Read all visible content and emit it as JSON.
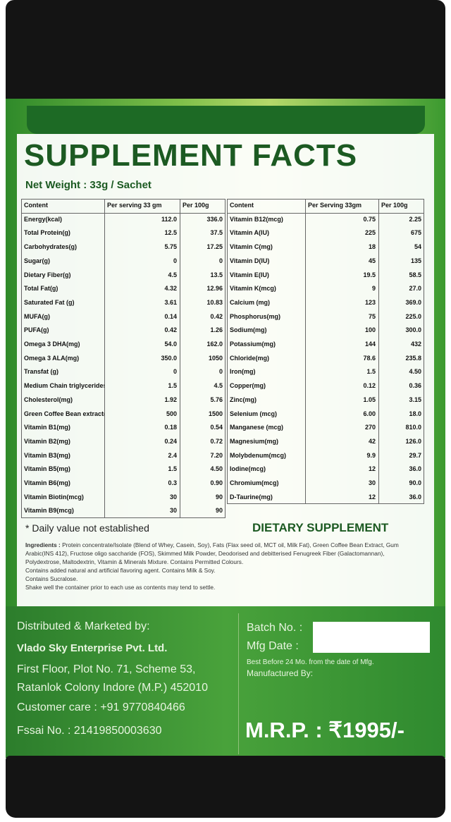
{
  "header": {
    "title": "SUPPLEMENT FACTS",
    "net_weight": "Net Weight : 33g / Sachet"
  },
  "left_table": {
    "columns": [
      "Content",
      "Per serving 33 gm",
      "Per 100g"
    ],
    "rows": [
      [
        "Energy(kcal)",
        "112.0",
        "336.0"
      ],
      [
        "Total Protein(g)",
        "12.5",
        "37.5"
      ],
      [
        "Carbohydrates(g)",
        "5.75",
        "17.25"
      ],
      [
        "Sugar(g)",
        "0",
        "0"
      ],
      [
        "Dietary Fiber(g)",
        "4.5",
        "13.5"
      ],
      [
        "Total Fat(g)",
        "4.32",
        "12.96"
      ],
      [
        "Saturated Fat (g)",
        "3.61",
        "10.83"
      ],
      [
        "MUFA(g)",
        "0.14",
        "0.42"
      ],
      [
        "PUFA(g)",
        "0.42",
        "1.26"
      ],
      [
        "Omega 3 DHA(mg)",
        "54.0",
        "162.0"
      ],
      [
        "Omega 3 ALA(mg)",
        "350.0",
        "1050"
      ],
      [
        "Transfat (g)",
        "0",
        "0"
      ],
      [
        "Medium Chain triglycerides(g)",
        "1.5",
        "4.5"
      ],
      [
        "Cholesterol(mg)",
        "1.92",
        "5.76"
      ],
      [
        "Green Coffee Bean extract(mg)",
        "500",
        "1500"
      ],
      [
        "Vitamin B1(mg)",
        "0.18",
        "0.54"
      ],
      [
        "Vitamin B2(mg)",
        "0.24",
        "0.72"
      ],
      [
        "Vitamin B3(mg)",
        "2.4",
        "7.20"
      ],
      [
        "Vitamin B5(mg)",
        "1.5",
        "4.50"
      ],
      [
        "Vitamin B6(mg)",
        "0.3",
        "0.90"
      ],
      [
        "Vitamin Biotin(mcg)",
        "30",
        "90"
      ],
      [
        "Vitamin B9(mcg)",
        "30",
        "90"
      ]
    ]
  },
  "right_table": {
    "columns": [
      "Content",
      "Per Serving 33gm",
      "Per 100g"
    ],
    "rows": [
      [
        "Vitamin B12(mcg)",
        "0.75",
        "2.25"
      ],
      [
        "Vitamin A(IU)",
        "225",
        "675"
      ],
      [
        "Vitamin C(mg)",
        "18",
        "54"
      ],
      [
        "Vitamin D(IU)",
        "45",
        "135"
      ],
      [
        "Vitamin E(IU)",
        "19.5",
        "58.5"
      ],
      [
        "Vitamin K(mcg)",
        "9",
        "27.0"
      ],
      [
        "Calcium (mg)",
        "123",
        "369.0"
      ],
      [
        "Phosphorus(mg)",
        "75",
        "225.0"
      ],
      [
        "Sodium(mg)",
        "100",
        "300.0"
      ],
      [
        "Potassium(mg)",
        "144",
        "432"
      ],
      [
        "Chloride(mg)",
        "78.6",
        "235.8"
      ],
      [
        "Iron(mg)",
        "1.5",
        "4.50"
      ],
      [
        "Copper(mg)",
        "0.12",
        "0.36"
      ],
      [
        "Zinc(mg)",
        "1.05",
        "3.15"
      ],
      [
        "Selenium (mcg)",
        "6.00",
        "18.0"
      ],
      [
        "Manganese (mcg)",
        "270",
        "810.0"
      ],
      [
        "Magnesium(mg)",
        "42",
        "126.0"
      ],
      [
        "Molybdenum(mcg)",
        "9.9",
        "29.7"
      ],
      [
        "Iodine(mcg)",
        "12",
        "36.0"
      ],
      [
        "Chromium(mcg)",
        "30",
        "90.0"
      ],
      [
        "D-Taurine(mg)",
        "12",
        "36.0"
      ]
    ]
  },
  "notes": {
    "daily_value": "* Daily value not established",
    "dietary": "DIETARY SUPPLEMENT",
    "ingredients_label": "Ingredients :",
    "ingredients": "Protein concentrate/Isolate (Blend of Whey, Casein, Soy), Fats (Flax seed oil, MCT oil, Milk Fat), Green Coffee Bean Extract, Gum Arabic(INS 412), Fructose oligo saccharide (FOS), Skimmed Milk Powder, Deodorised and debitterised Fenugreek Fiber (Galactomannan), Polydextrose, Maltodextrin, Vitamin & Minerals Mixture. Contains Permitted Colours.",
    "flavor": "Contains added natural and artificial flavoring agent. Contains Milk & Soy.",
    "sucralose": "Contains Sucralose.",
    "shake": "Shake well the container prior to each use as contents may tend to settle."
  },
  "footer": {
    "distributed": "Distributed & Marketed by:",
    "company": "Vlado Sky Enterprise Pvt. Ltd.",
    "address1": "First Floor, Plot No. 71, Scheme 53,",
    "address2": "Ratanlok Colony  Indore (M.P.) 452010",
    "care": "Customer care : +91 9770840466",
    "fssai": "Fssai No. : 21419850003630",
    "batch": "Batch No. :",
    "mfg": "Mfg Date :",
    "best_before": "Best Before 24 Mo. from the date of Mfg.",
    "manufactured": "Manufactured By:",
    "mrp": "M.R.P. : ₹1995/-"
  }
}
